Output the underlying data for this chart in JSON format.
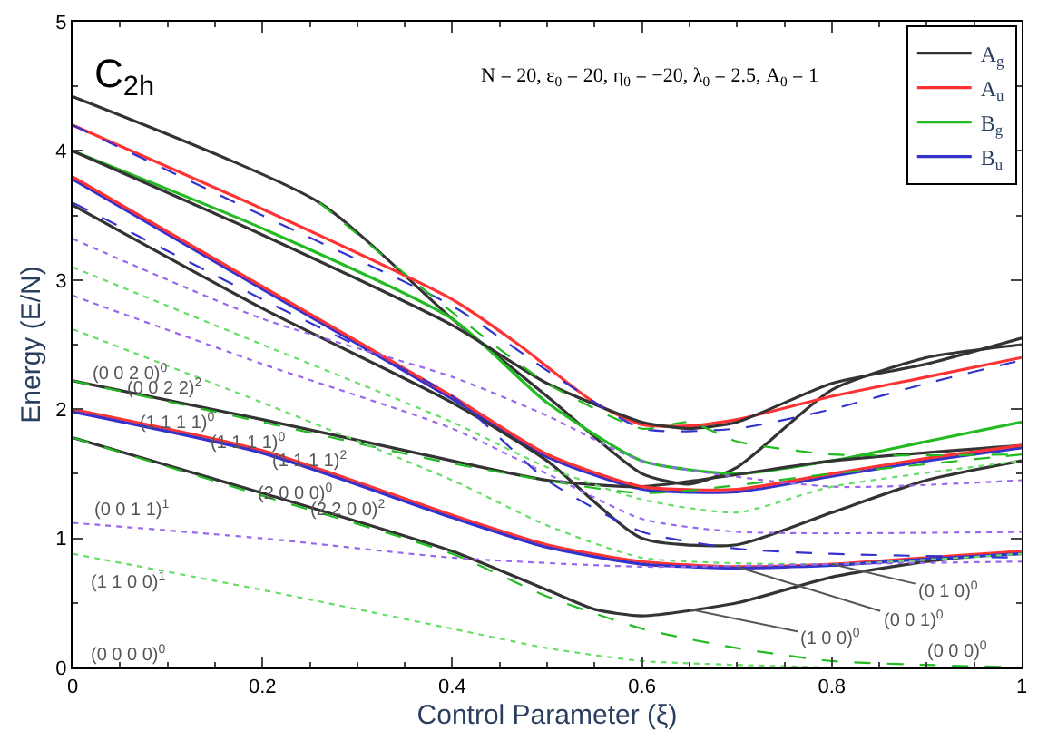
{
  "chart_data": {
    "type": "line",
    "xlabel": "Control Parameter (ξ)",
    "ylabel": "Energy (E/N)",
    "xlim": [
      0,
      1
    ],
    "xticks": [
      0,
      0.2,
      0.4,
      0.6,
      0.8,
      1
    ],
    "ylim": [
      0,
      5
    ],
    "yticks": [
      0,
      1,
      2,
      3,
      4,
      5
    ],
    "legend": "top right",
    "marker": "none",
    "series": [
      {
        "name": "A$_{g}$",
        "color": "#333333",
        "line_style": "solid",
        "x": [
          0,
          0.26,
          0.4,
          0.5,
          0.6,
          0.65,
          0.7,
          0.8,
          0.9,
          1
        ],
        "values": [
          4.42,
          3.6,
          2.7,
          2.1,
          1.5,
          1.42,
          1.55,
          2.15,
          2.4,
          2.5
        ]
      },
      {
        "name": "A$_{u}$",
        "color": "#ff3333",
        "line_style": "solid",
        "x": [
          0,
          0.2,
          0.4,
          0.47,
          0.55,
          0.6,
          0.65,
          0.7,
          0.8,
          0.9,
          1
        ],
        "values": [
          4.2,
          3.55,
          2.85,
          2.5,
          2.05,
          1.88,
          1.87,
          1.92,
          2.1,
          2.25,
          2.4
        ]
      },
      {
        "name": "B$_{g}$",
        "color": "#22bb22",
        "line_style": "solid",
        "x": [
          0,
          0.2,
          0.4,
          0.5,
          0.6,
          0.7,
          0.8,
          0.9,
          1
        ],
        "values": [
          4.0,
          3.4,
          2.7,
          2.05,
          1.6,
          1.5,
          1.6,
          1.75,
          1.9
        ]
      },
      {
        "name": "B$_{u}$",
        "color": "#3333cc",
        "line_style": "solid",
        "x": [
          0,
          0.2,
          0.4,
          0.5,
          0.6,
          0.7,
          0.8,
          0.9,
          1
        ],
        "values": [
          3.78,
          2.93,
          2.08,
          1.63,
          1.38,
          1.36,
          1.48,
          1.6,
          1.7
        ]
      },
      {
        "color": "#333333",
        "line_style": "solid",
        "x": [
          0,
          0.2,
          0.4,
          0.5,
          0.6,
          0.65,
          0.7,
          0.8,
          0.9,
          1
        ],
        "values": [
          4.0,
          3.35,
          2.65,
          2.2,
          1.9,
          1.85,
          1.9,
          2.2,
          2.35,
          2.55
        ]
      },
      {
        "color": "#333333",
        "line_style": "solid",
        "x": [
          0,
          0.2,
          0.4,
          0.5,
          0.6,
          0.7,
          0.8,
          0.9,
          1
        ],
        "values": [
          3.58,
          2.78,
          2.05,
          1.6,
          1.0,
          0.95,
          1.2,
          1.45,
          1.6
        ]
      },
      {
        "color": "#333333",
        "line_style": "solid",
        "x": [
          0,
          0.2,
          0.4,
          0.5,
          0.6,
          0.8,
          1
        ],
        "values": [
          2.22,
          1.92,
          1.6,
          1.45,
          1.4,
          1.6,
          1.72
        ]
      },
      {
        "color": "#333333",
        "line_style": "solid",
        "x": [
          0,
          0.2,
          0.4,
          0.5,
          0.55,
          0.6,
          0.7,
          0.8,
          0.9,
          1
        ],
        "values": [
          1.78,
          1.35,
          0.9,
          0.6,
          0.45,
          0.4,
          0.5,
          0.7,
          0.82,
          0.9
        ]
      },
      {
        "color": "#ff3333",
        "line_style": "solid",
        "x": [
          0,
          0.2,
          0.4,
          0.5,
          0.6,
          0.7,
          0.8,
          0.9,
          1
        ],
        "values": [
          3.8,
          2.95,
          2.1,
          1.65,
          1.4,
          1.38,
          1.5,
          1.62,
          1.72
        ]
      },
      {
        "color": "#ff3333",
        "line_style": "solid",
        "x": [
          0,
          0.2,
          0.4,
          0.5,
          0.6,
          0.7,
          0.8,
          0.9,
          1
        ],
        "values": [
          2.0,
          1.68,
          1.18,
          0.95,
          0.82,
          0.78,
          0.8,
          0.85,
          0.9
        ]
      },
      {
        "color": "#3333cc",
        "line_style": "solid",
        "x": [
          0,
          0.2,
          0.4,
          0.5,
          0.6,
          0.7,
          0.8,
          0.9,
          1
        ],
        "values": [
          1.98,
          1.66,
          1.16,
          0.93,
          0.8,
          0.77,
          0.79,
          0.84,
          0.88
        ]
      },
      {
        "color": "#3333cc",
        "line_style": "dashed",
        "x": [
          0,
          0.2,
          0.4,
          0.5,
          0.6,
          0.7,
          0.8,
          0.9,
          1
        ],
        "values": [
          4.2,
          3.5,
          2.8,
          2.3,
          1.85,
          1.85,
          2.0,
          2.2,
          2.38
        ]
      },
      {
        "color": "#3333cc",
        "line_style": "dashed",
        "x": [
          0,
          0.2,
          0.4,
          0.5,
          0.6,
          0.7,
          0.8,
          1
        ],
        "values": [
          3.6,
          2.85,
          2.1,
          1.45,
          1.05,
          0.92,
          0.88,
          0.85
        ]
      },
      {
        "color": "#22bb22",
        "line_style": "dashed",
        "x": [
          0.26,
          0.4,
          0.5,
          0.6,
          0.65,
          0.7,
          0.8,
          1
        ],
        "values": [
          3.6,
          2.75,
          2.2,
          1.85,
          1.9,
          1.75,
          1.65,
          1.65
        ]
      },
      {
        "color": "#22bb22",
        "line_style": "dashed",
        "x": [
          0,
          0.2,
          0.4,
          0.6,
          0.8,
          1
        ],
        "values": [
          2.22,
          1.9,
          1.58,
          1.35,
          1.5,
          1.65
        ]
      },
      {
        "color": "#22bb22",
        "line_style": "dashed",
        "x": [
          0,
          0.2,
          0.4,
          0.5,
          0.6,
          0.7,
          0.8,
          0.9,
          1
        ],
        "values": [
          1.78,
          1.33,
          0.88,
          0.55,
          0.3,
          0.15,
          0.05,
          0.02,
          0.0
        ]
      },
      {
        "color": "#66dd66",
        "line_style": "dotted",
        "x": [
          0,
          0.2,
          0.4,
          0.5,
          0.6,
          0.7,
          0.8,
          1
        ],
        "values": [
          3.1,
          2.5,
          1.9,
          1.55,
          1.3,
          1.2,
          1.4,
          1.6
        ]
      },
      {
        "color": "#66dd66",
        "line_style": "dotted",
        "x": [
          0,
          0.2,
          0.4,
          0.5,
          0.6,
          0.8,
          1
        ],
        "values": [
          2.62,
          2.05,
          1.45,
          1.1,
          0.85,
          0.8,
          0.88
        ]
      },
      {
        "color": "#66dd66",
        "line_style": "dotted",
        "x": [
          0,
          0.2,
          0.4,
          0.5,
          0.6,
          0.7,
          0.8
        ],
        "values": [
          0.88,
          0.6,
          0.3,
          0.15,
          0.05,
          0.02,
          0.0
        ]
      },
      {
        "color": "#9966ee",
        "line_style": "dotted",
        "x": [
          0,
          0.2,
          0.4,
          0.5,
          0.6,
          0.8,
          1
        ],
        "values": [
          3.32,
          2.7,
          2.25,
          1.95,
          1.6,
          1.4,
          1.45
        ]
      },
      {
        "color": "#9966ee",
        "line_style": "dotted",
        "x": [
          0,
          0.2,
          0.4,
          0.5,
          0.6,
          0.7,
          1
        ],
        "values": [
          2.88,
          2.35,
          1.85,
          1.5,
          1.15,
          1.05,
          1.05
        ]
      },
      {
        "color": "#9966ee",
        "line_style": "dotted",
        "x": [
          0,
          0.2,
          0.4,
          0.6,
          0.8,
          1
        ],
        "values": [
          1.12,
          1.0,
          0.85,
          0.78,
          0.8,
          0.82
        ]
      }
    ],
    "annotations": [
      "C$_{2h}$",
      "N = 20, ε$_{0}$ = 20, η$_{0}$ = −20, λ$_{0}$ = 2.5, A$_{0}$ = 1",
      "(0 0 2 0)$^{0}$",
      "(0 0 2 2)$^{2}$",
      "(1 1 1 1)$^{0}$",
      "(1 1 1 1)$^{0}$",
      "(1 1 1 1)$^{2}$",
      "(0 0 1 1)$^{1}$",
      "(2 0 0 0)$^{0}$",
      "(2 2 0 0)$^{2}$",
      "(1 1 0 0)$^{1}$",
      "(0 0 0 0)$^{0}$",
      "(0 0 0)$^{0}$",
      {
        "text": "(0 1 0)$^{0}$",
        "x": 0.8,
        "y": 0.8
      },
      {
        "text": "(0 0 1)$^{0}$",
        "x": 0.7,
        "y": 0.78
      },
      {
        "text": "(1 0 0)$^{0}$",
        "x": 0.65,
        "y": 0.45
      }
    ]
  }
}
